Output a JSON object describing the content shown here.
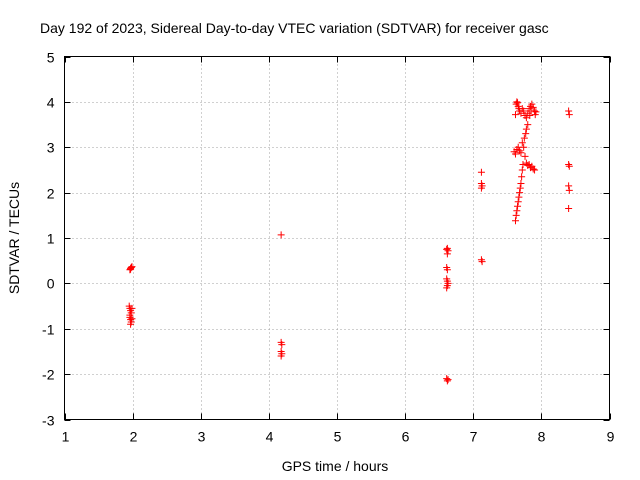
{
  "chart_data": {
    "type": "scatter",
    "title": "Day 192 of 2023, Sidereal Day-to-day VTEC variation (SDTVAR) for receiver gasc",
    "xlabel": "GPS time / hours",
    "ylabel": "SDTVAR / TECUs",
    "xlim": [
      1,
      9
    ],
    "ylim": [
      -3,
      5
    ],
    "xticks": [
      "1",
      "2",
      "3",
      "4",
      "5",
      "6",
      "7",
      "8",
      "9"
    ],
    "yticks": [
      "-3",
      "-2",
      "-1",
      "0",
      "1",
      "2",
      "3",
      "4",
      "5"
    ],
    "grid": true,
    "marker": "+",
    "color": "#ff0000",
    "series": [
      {
        "points": [
          [
            1.96,
            0.3
          ],
          [
            1.97,
            0.33
          ],
          [
            1.98,
            0.35
          ],
          [
            1.99,
            0.37
          ],
          [
            1.97,
            0.31
          ],
          [
            1.95,
            -0.5
          ],
          [
            1.96,
            -0.55
          ],
          [
            1.97,
            -0.6
          ],
          [
            1.98,
            -0.65
          ],
          [
            1.99,
            -0.55
          ],
          [
            1.96,
            -0.75
          ],
          [
            1.97,
            -0.8
          ],
          [
            1.98,
            -0.85
          ],
          [
            1.99,
            -0.78
          ],
          [
            1.97,
            -0.9
          ],
          [
            1.96,
            -0.7
          ],
          [
            4.18,
            1.07
          ],
          [
            4.18,
            -1.3
          ],
          [
            4.19,
            -1.35
          ],
          [
            4.18,
            -1.5
          ],
          [
            4.19,
            -1.55
          ],
          [
            4.18,
            -1.6
          ],
          [
            6.61,
            0.75
          ],
          [
            6.62,
            0.77
          ],
          [
            6.63,
            0.72
          ],
          [
            6.62,
            0.65
          ],
          [
            6.61,
            0.35
          ],
          [
            6.62,
            0.3
          ],
          [
            6.61,
            0.1
          ],
          [
            6.62,
            0.05
          ],
          [
            6.63,
            0.0
          ],
          [
            6.62,
            -0.05
          ],
          [
            6.61,
            -0.1
          ],
          [
            6.61,
            -2.1
          ],
          [
            6.62,
            -2.15
          ],
          [
            6.63,
            -2.12
          ],
          [
            7.12,
            2.45
          ],
          [
            7.12,
            2.2
          ],
          [
            7.13,
            2.15
          ],
          [
            7.12,
            2.1
          ],
          [
            7.12,
            0.52
          ],
          [
            7.13,
            0.48
          ],
          [
            7.62,
            1.38
          ],
          [
            7.63,
            1.5
          ],
          [
            7.64,
            1.6
          ],
          [
            7.65,
            1.7
          ],
          [
            7.66,
            1.8
          ],
          [
            7.67,
            1.9
          ],
          [
            7.68,
            2.0
          ],
          [
            7.69,
            2.1
          ],
          [
            7.7,
            2.2
          ],
          [
            7.71,
            2.35
          ],
          [
            7.72,
            2.5
          ],
          [
            7.73,
            2.62
          ],
          [
            7.6,
            2.9
          ],
          [
            7.62,
            2.85
          ],
          [
            7.64,
            2.95
          ],
          [
            7.66,
            3.0
          ],
          [
            7.68,
            2.92
          ],
          [
            7.7,
            2.88
          ],
          [
            7.72,
            3.1
          ],
          [
            7.74,
            3.0
          ],
          [
            7.76,
            2.8
          ],
          [
            7.78,
            2.65
          ],
          [
            7.8,
            2.6
          ],
          [
            7.82,
            2.62
          ],
          [
            7.84,
            2.55
          ],
          [
            7.86,
            2.58
          ],
          [
            7.88,
            2.52
          ],
          [
            7.9,
            2.5
          ],
          [
            7.75,
            3.2
          ],
          [
            7.77,
            3.3
          ],
          [
            7.78,
            3.4
          ],
          [
            7.8,
            3.5
          ],
          [
            7.62,
            3.72
          ],
          [
            7.63,
            3.95
          ],
          [
            7.64,
            4.0
          ],
          [
            7.65,
            3.98
          ],
          [
            7.66,
            3.9
          ],
          [
            7.67,
            3.85
          ],
          [
            7.68,
            3.8
          ],
          [
            7.7,
            3.75
          ],
          [
            7.72,
            3.85
          ],
          [
            7.74,
            3.8
          ],
          [
            7.76,
            3.7
          ],
          [
            7.78,
            3.65
          ],
          [
            7.8,
            3.75
          ],
          [
            7.82,
            3.85
          ],
          [
            7.84,
            3.9
          ],
          [
            7.86,
            3.95
          ],
          [
            7.88,
            3.88
          ],
          [
            7.9,
            3.8
          ],
          [
            7.91,
            3.72
          ],
          [
            7.92,
            3.78
          ],
          [
            7.83,
            3.7
          ],
          [
            7.85,
            3.8
          ],
          [
            8.4,
            3.8
          ],
          [
            8.41,
            3.72
          ],
          [
            8.4,
            2.62
          ],
          [
            8.41,
            2.58
          ],
          [
            8.4,
            2.15
          ],
          [
            8.41,
            2.05
          ],
          [
            8.4,
            1.65
          ]
        ]
      }
    ]
  }
}
